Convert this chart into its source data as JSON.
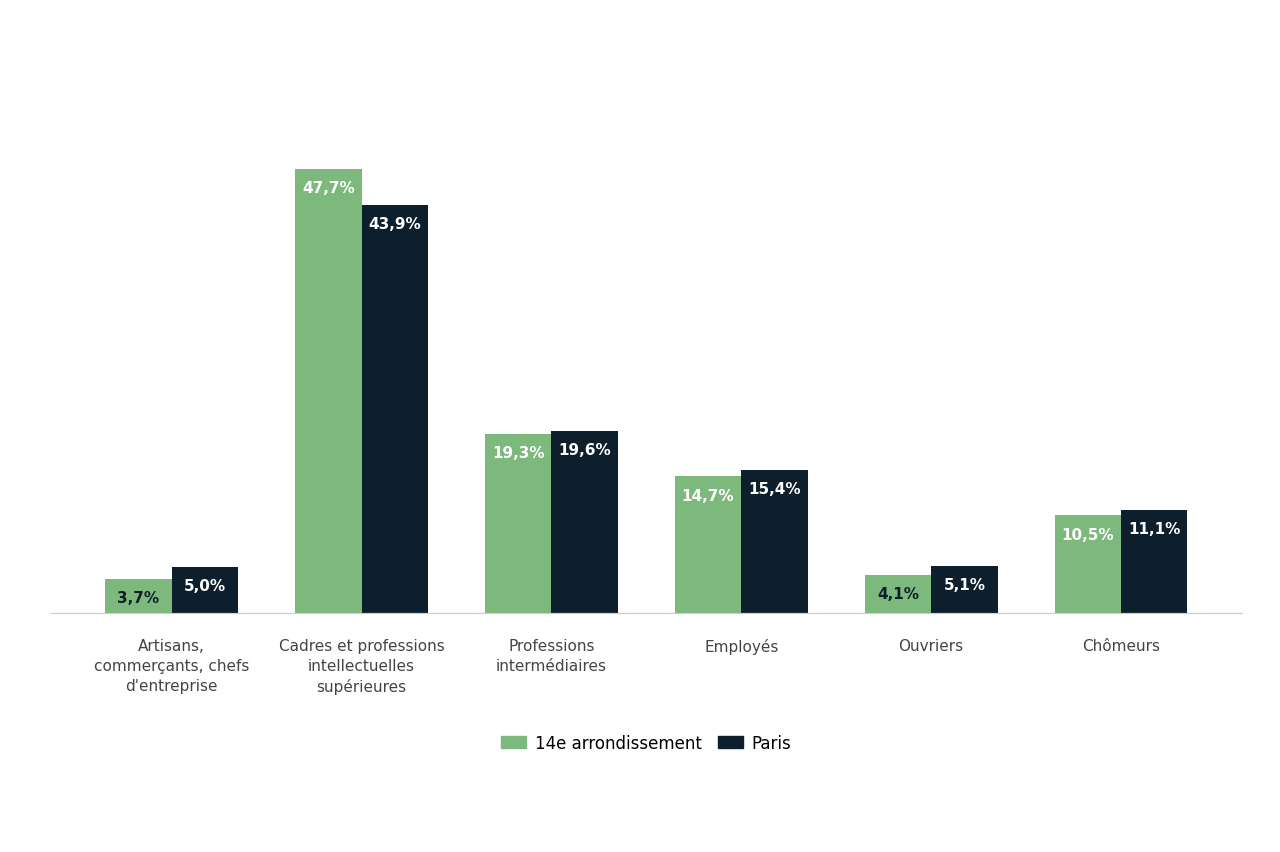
{
  "categories": [
    "Artisans,\ncommerçants, chefs\nd'entreprise",
    "Cadres et professions\nintellectuelles\nsupérieures",
    "Professions\nintermédiaires",
    "Employés",
    "Ouvriers",
    "Chômeurs"
  ],
  "values_14e": [
    3.7,
    47.7,
    19.3,
    14.7,
    4.1,
    10.5
  ],
  "values_paris": [
    5.0,
    43.9,
    19.6,
    15.4,
    5.1,
    11.1
  ],
  "labels_14e": [
    "3,7%",
    "47,7%",
    "19,3%",
    "14,7%",
    "4,1%",
    "10,5%"
  ],
  "labels_paris": [
    "5,0%",
    "43,9%",
    "19,6%",
    "15,4%",
    "5,1%",
    "11,1%"
  ],
  "color_14e": "#7db87d",
  "color_paris": "#0d1f2d",
  "legend_14e": "14e arrondissement",
  "legend_paris": "Paris",
  "background_color": "#ffffff",
  "bar_width": 0.35,
  "ylim": [
    0,
    55
  ],
  "label_fontsize": 11,
  "tick_fontsize": 11,
  "legend_fontsize": 12
}
